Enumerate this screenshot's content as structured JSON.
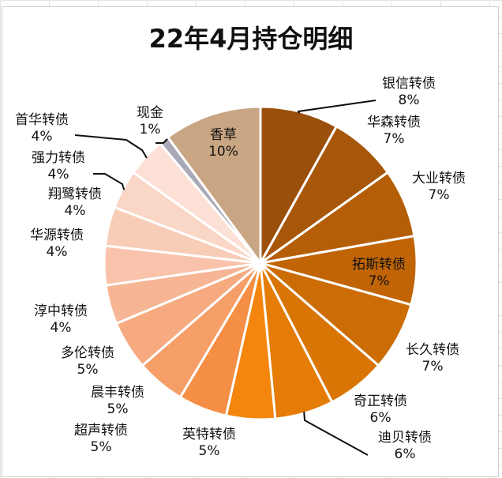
{
  "chart_data": {
    "type": "pie",
    "title": "22年4月持仓明细",
    "slices": [
      {
        "name": "银信转债",
        "label": "8%",
        "value": 8,
        "color": "#9a4f0a"
      },
      {
        "name": "华森转债",
        "label": "7%",
        "value": 7,
        "color": "#a8570a"
      },
      {
        "name": "大业转债",
        "label": "7%",
        "value": 7,
        "color": "#b55e08"
      },
      {
        "name": "拓斯转债",
        "label": "7%",
        "value": 7,
        "color": "#c06406"
      },
      {
        "name": "长久转债",
        "label": "7%",
        "value": 7,
        "color": "#cc6c05"
      },
      {
        "name": "奇正转债",
        "label": "6%",
        "value": 6,
        "color": "#d97505"
      },
      {
        "name": "迪贝转债",
        "label": "6%",
        "value": 6,
        "color": "#e57c06"
      },
      {
        "name": "英特转债",
        "label": "5%",
        "value": 5,
        "color": "#f4850d"
      },
      {
        "name": "超声转债",
        "label": "5%",
        "value": 5,
        "color": "#f48f45"
      },
      {
        "name": "晨丰转债",
        "label": "5%",
        "value": 5,
        "color": "#f69e67"
      },
      {
        "name": "多伦转债",
        "label": "5%",
        "value": 5,
        "color": "#f7aa80"
      },
      {
        "name": "淳中转债",
        "label": "4%",
        "value": 4,
        "color": "#f6b595"
      },
      {
        "name": "华源转债",
        "label": "4%",
        "value": 4,
        "color": "#f8c3aa"
      },
      {
        "name": "翔鹭转债",
        "label": "4%",
        "value": 4,
        "color": "#f8cdb8"
      },
      {
        "name": "强力转债",
        "label": "4%",
        "value": 4,
        "color": "#fad6c6"
      },
      {
        "name": "首华转债",
        "label": "4%",
        "value": 4,
        "color": "#fde0d6"
      },
      {
        "name": "现金",
        "label": "1%",
        "value": 1,
        "color": "#a9a9b8"
      },
      {
        "name": "香草",
        "label": "10%",
        "value": 10,
        "color": "#c9a683"
      }
    ]
  }
}
